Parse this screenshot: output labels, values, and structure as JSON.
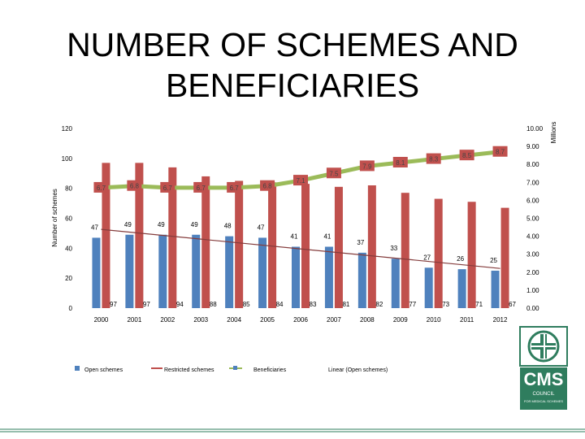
{
  "title": "NUMBER OF SCHEMES AND BENEFICIARIES",
  "logo": {
    "name": "CMS",
    "sub1": "COUNCIL",
    "sub2": "FOR MEDICAL SCHEMES"
  },
  "colors": {
    "open": "#4f81bd",
    "restricted": "#c0504d",
    "beneficiaries": "#9bbb59",
    "linear": "#843c3c",
    "logo": "#2f7d5e"
  },
  "chart_data": {
    "type": "bar",
    "categories": [
      "2000",
      "2001",
      "2002",
      "2003",
      "2004",
      "2005",
      "2006",
      "2007",
      "2008",
      "2009",
      "2010",
      "2011",
      "2012"
    ],
    "ylabel": "Number of schemes",
    "y2label": "Millions",
    "ylim": [
      0,
      120
    ],
    "y2lim": [
      0,
      10
    ],
    "yticks": [
      "0",
      "20",
      "40",
      "60",
      "80",
      "100",
      "120"
    ],
    "y2ticks": [
      "0.00",
      "1.00",
      "2.00",
      "3.00",
      "4.00",
      "5.00",
      "6.00",
      "7.00",
      "8.00",
      "9.00",
      "10.00"
    ],
    "series": [
      {
        "name": "Open schemes",
        "type": "bar",
        "axis": "left",
        "values": [
          47,
          49,
          49,
          49,
          48,
          47,
          41,
          41,
          37,
          33,
          27,
          26,
          25
        ]
      },
      {
        "name": "Restricted schemes",
        "type": "bar",
        "axis": "left",
        "values": [
          97,
          97,
          94,
          88,
          85,
          84,
          83,
          81,
          82,
          77,
          73,
          71,
          67
        ]
      },
      {
        "name": "Beneficiaries",
        "type": "line",
        "axis": "right",
        "values": [
          6.7,
          6.8,
          6.7,
          6.7,
          6.7,
          6.8,
          7.1,
          7.5,
          7.9,
          8.1,
          8.3,
          8.5,
          8.7
        ],
        "labels": [
          "6.7",
          "6.8",
          "6.7",
          "6.7",
          "6.7",
          "6.8",
          "7.1",
          "7.5",
          "7.9",
          "8.1",
          "8.3",
          "8.5",
          "8.7"
        ]
      },
      {
        "name": "Linear (Open schemes)",
        "type": "trendline",
        "axis": "left",
        "values": [
          52.6,
          50.4,
          48.3,
          46.1,
          43.9,
          41.7,
          39.6,
          37.4,
          35.2,
          33.0,
          30.9,
          28.7,
          26.5
        ]
      }
    ],
    "legend": [
      "Open schemes",
      "Restricted schemes",
      "Beneficiaries",
      "Linear (Open schemes)"
    ],
    "legend_position": "bottom",
    "grid": false
  }
}
